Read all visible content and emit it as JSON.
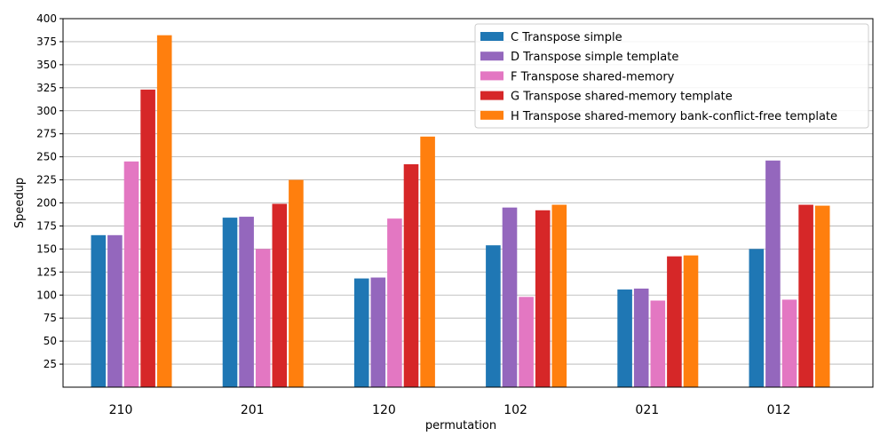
{
  "chart_data": {
    "type": "bar",
    "xlabel": "permutation",
    "ylabel": "Speedup",
    "ylim": [
      0,
      400
    ],
    "yticks": [
      25,
      50,
      75,
      100,
      125,
      150,
      175,
      200,
      225,
      250,
      275,
      300,
      325,
      350,
      375,
      400
    ],
    "grid": "horizontal",
    "legend_position": "top-right",
    "categories": [
      "210",
      "201",
      "120",
      "102",
      "021",
      "012"
    ],
    "series": [
      {
        "name": "C Transpose simple",
        "color": "#1f77b4",
        "values": [
          165,
          184,
          118,
          154,
          106,
          150
        ]
      },
      {
        "name": "D Transpose simple template",
        "color": "#9467bd",
        "values": [
          165,
          185,
          119,
          195,
          107,
          246
        ]
      },
      {
        "name": "F Transpose shared-memory",
        "color": "#e377c2",
        "values": [
          245,
          150,
          183,
          98,
          94,
          95
        ]
      },
      {
        "name": "G Transpose shared-memory template",
        "color": "#d62728",
        "values": [
          323,
          199,
          242,
          192,
          142,
          198
        ]
      },
      {
        "name": "H Transpose shared-memory bank-conflict-free template",
        "color": "#ff7f0e",
        "values": [
          382,
          225,
          272,
          198,
          143,
          197
        ]
      }
    ]
  }
}
